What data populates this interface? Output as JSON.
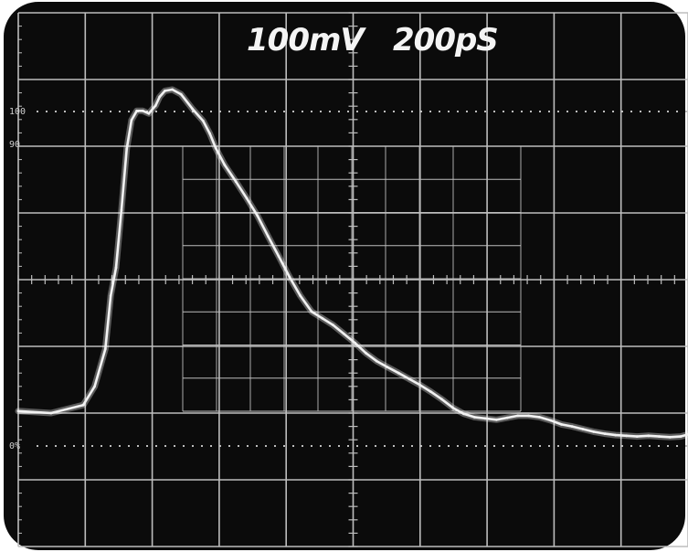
{
  "readout": {
    "volts_per_div": "100mV",
    "time_per_div": "200pS"
  },
  "edge_labels": {
    "l100": "100",
    "l90": "90",
    "l0": "0%"
  },
  "colors": {
    "screen": "#0b0b0b",
    "graticule": "#bdbdbd",
    "trace": "#f2f2f2"
  },
  "chart_data": {
    "type": "line",
    "title": "",
    "xlabel": "",
    "ylabel": "",
    "grid": true,
    "xlim": [
      0,
      10
    ],
    "ylim": [
      -4,
      4
    ],
    "series": [
      {
        "x": [
          0.0,
          0.49,
          0.97,
          1.14,
          1.3,
          1.38,
          1.46,
          1.54,
          1.62,
          1.69,
          1.77,
          1.86,
          1.95,
          2.05,
          2.11,
          2.19,
          2.3,
          2.43,
          2.6,
          2.76,
          2.86,
          2.95,
          3.08,
          3.25,
          3.41,
          3.57,
          3.73,
          3.89,
          4.05,
          4.21,
          4.38,
          4.54,
          4.7,
          4.86,
          5.03,
          5.19,
          5.35,
          5.51,
          5.68,
          5.84,
          6.0,
          6.16,
          6.32,
          6.49,
          6.65,
          6.81,
          6.97,
          7.14,
          7.3,
          7.46,
          7.62,
          7.78,
          7.95,
          8.11,
          8.27,
          8.43,
          8.59,
          8.76,
          8.92,
          9.08,
          9.24,
          9.41,
          9.57,
          9.73,
          9.89,
          10.0
        ],
        "y": [
          -1.97,
          -2.0,
          -1.88,
          -1.6,
          -1.04,
          -0.24,
          0.18,
          1.04,
          1.96,
          2.39,
          2.53,
          2.53,
          2.49,
          2.61,
          2.74,
          2.83,
          2.85,
          2.78,
          2.56,
          2.38,
          2.19,
          1.97,
          1.72,
          1.47,
          1.22,
          0.96,
          0.65,
          0.35,
          0.04,
          -0.24,
          -0.48,
          -0.58,
          -0.68,
          -0.81,
          -0.95,
          -1.1,
          -1.22,
          -1.31,
          -1.4,
          -1.49,
          -1.58,
          -1.68,
          -1.79,
          -1.92,
          -2.01,
          -2.06,
          -2.08,
          -2.1,
          -2.07,
          -2.04,
          -2.04,
          -2.06,
          -2.11,
          -2.17,
          -2.2,
          -2.24,
          -2.28,
          -2.31,
          -2.33,
          -2.34,
          -2.35,
          -2.34,
          -2.35,
          -2.36,
          -2.35,
          -2.32
        ]
      }
    ]
  }
}
